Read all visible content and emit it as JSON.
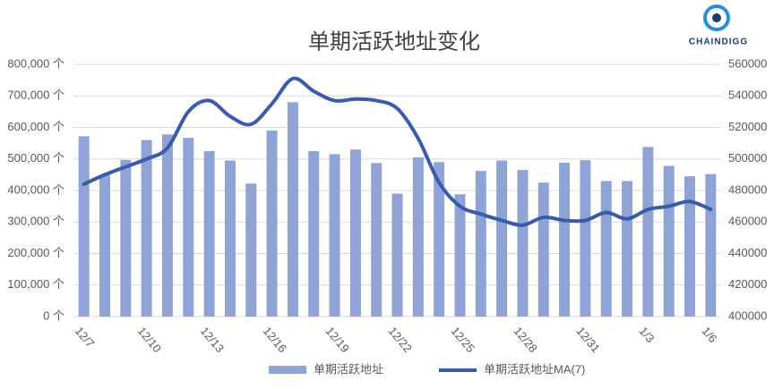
{
  "chart_data": {
    "type": "bar_line",
    "title": "单期活跃地址变化",
    "logo": "CHAINDIGG",
    "categories": [
      "12/7",
      null,
      null,
      "12/10",
      null,
      null,
      "12/13",
      null,
      null,
      "12/16",
      null,
      null,
      "12/19",
      null,
      null,
      "12/22",
      null,
      null,
      "12/25",
      null,
      null,
      "12/28",
      null,
      null,
      "12/31",
      null,
      null,
      "1/3",
      null,
      null,
      "1/6"
    ],
    "series": [
      {
        "name": "单期活跃地址",
        "type": "bar",
        "color": "#8fa3d6",
        "values": [
          572000,
          450000,
          497000,
          560000,
          578000,
          567000,
          525000,
          495000,
          422000,
          590000,
          680000,
          525000,
          515000,
          530000,
          487000,
          390000,
          505000,
          490000,
          388000,
          462000,
          495000,
          465000,
          425000,
          488000,
          496000,
          430000,
          430000,
          538000,
          478000,
          445000,
          452000
        ]
      },
      {
        "name": "单期活跃地址MA(7)",
        "type": "line",
        "axis": "y2",
        "color": "#3a5ba8",
        "values": [
          484000,
          490000,
          495000,
          500000,
          507000,
          530000,
          537000,
          527000,
          522000,
          535000,
          551000,
          543000,
          537000,
          538000,
          537000,
          532000,
          513000,
          485000,
          470000,
          465000,
          461000,
          458000,
          463000,
          461000,
          461000,
          466000,
          462000,
          468000,
          470000,
          473000,
          468000
        ]
      }
    ],
    "ylim": [
      0,
      800000
    ],
    "yticks": [
      {
        "value": 0,
        "label": "0 个"
      },
      {
        "value": 100000,
        "label": "100,000 个"
      },
      {
        "value": 200000,
        "label": "200,000 个"
      },
      {
        "value": 300000,
        "label": "300,000 个"
      },
      {
        "value": 400000,
        "label": "400,000 个"
      },
      {
        "value": 500000,
        "label": "500,000 个"
      },
      {
        "value": 600000,
        "label": "600,000 个"
      },
      {
        "value": 700000,
        "label": "700,000 个"
      },
      {
        "value": 800000,
        "label": "800,000 个"
      }
    ],
    "y2lim": [
      400000,
      560000
    ],
    "y2ticks": [
      400000,
      420000,
      440000,
      460000,
      480000,
      500000,
      520000,
      540000,
      560000
    ],
    "grid": true,
    "legend": "bottom"
  }
}
